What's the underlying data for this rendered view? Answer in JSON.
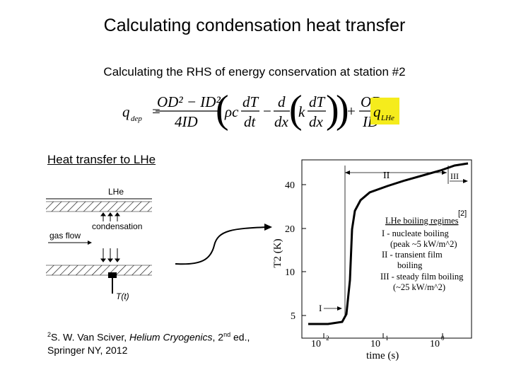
{
  "slide": {
    "title": "Calculating condensation heat transfer",
    "subtitle": "Calculating the RHS of energy conservation at station #2",
    "heat_heading": "Heat transfer to LHe"
  },
  "equation": {
    "lhs": "q",
    "lhs_sub": "dep",
    "eq": "=",
    "frac1_num": "OD² − ID²",
    "frac1_den": "4ID",
    "rho_c": "ρc",
    "dT": "dT",
    "dt": "dt",
    "minus": "−",
    "d": "d",
    "dx": "dx",
    "k": "k",
    "plus": "+",
    "frac2_num": "OD",
    "frac2_den": "ID",
    "q_lhe": "q",
    "q_lhe_sub": "LHe",
    "highlight_color": "#f5ec1c"
  },
  "sketch": {
    "lhe_label": "LHe",
    "condensation_label": "condensation",
    "gas_flow_label": "gas flow",
    "temp_label": "T(t)"
  },
  "reference": {
    "sup": "2",
    "author": "S. W. Van Sciver, ",
    "book": "Helium Cryogenics",
    "sep": ", 2",
    "ed_sup": "nd",
    "ed_rest": " ed.,",
    "publisher": "Springer NY, 2012"
  },
  "plot": {
    "ylabel": "T2 (K)",
    "xlabel": "time (s)",
    "yticks": [
      "40",
      "20",
      "10",
      "5"
    ],
    "xtick_base": [
      "10",
      "10",
      "10"
    ],
    "xtick_exp": [
      "−2",
      "−1",
      "0"
    ],
    "region_I": "I",
    "region_II": "II",
    "region_III": "III",
    "ref_tag": "[2]",
    "legend": {
      "title": "LHe boiling regimes",
      "lines": [
        "I - nucleate boiling",
        "(peak ~5 kW/m^2)",
        "II - transient film",
        "boiling",
        "III - steady film boiling",
        "(~25 kW/m^2)"
      ]
    }
  }
}
